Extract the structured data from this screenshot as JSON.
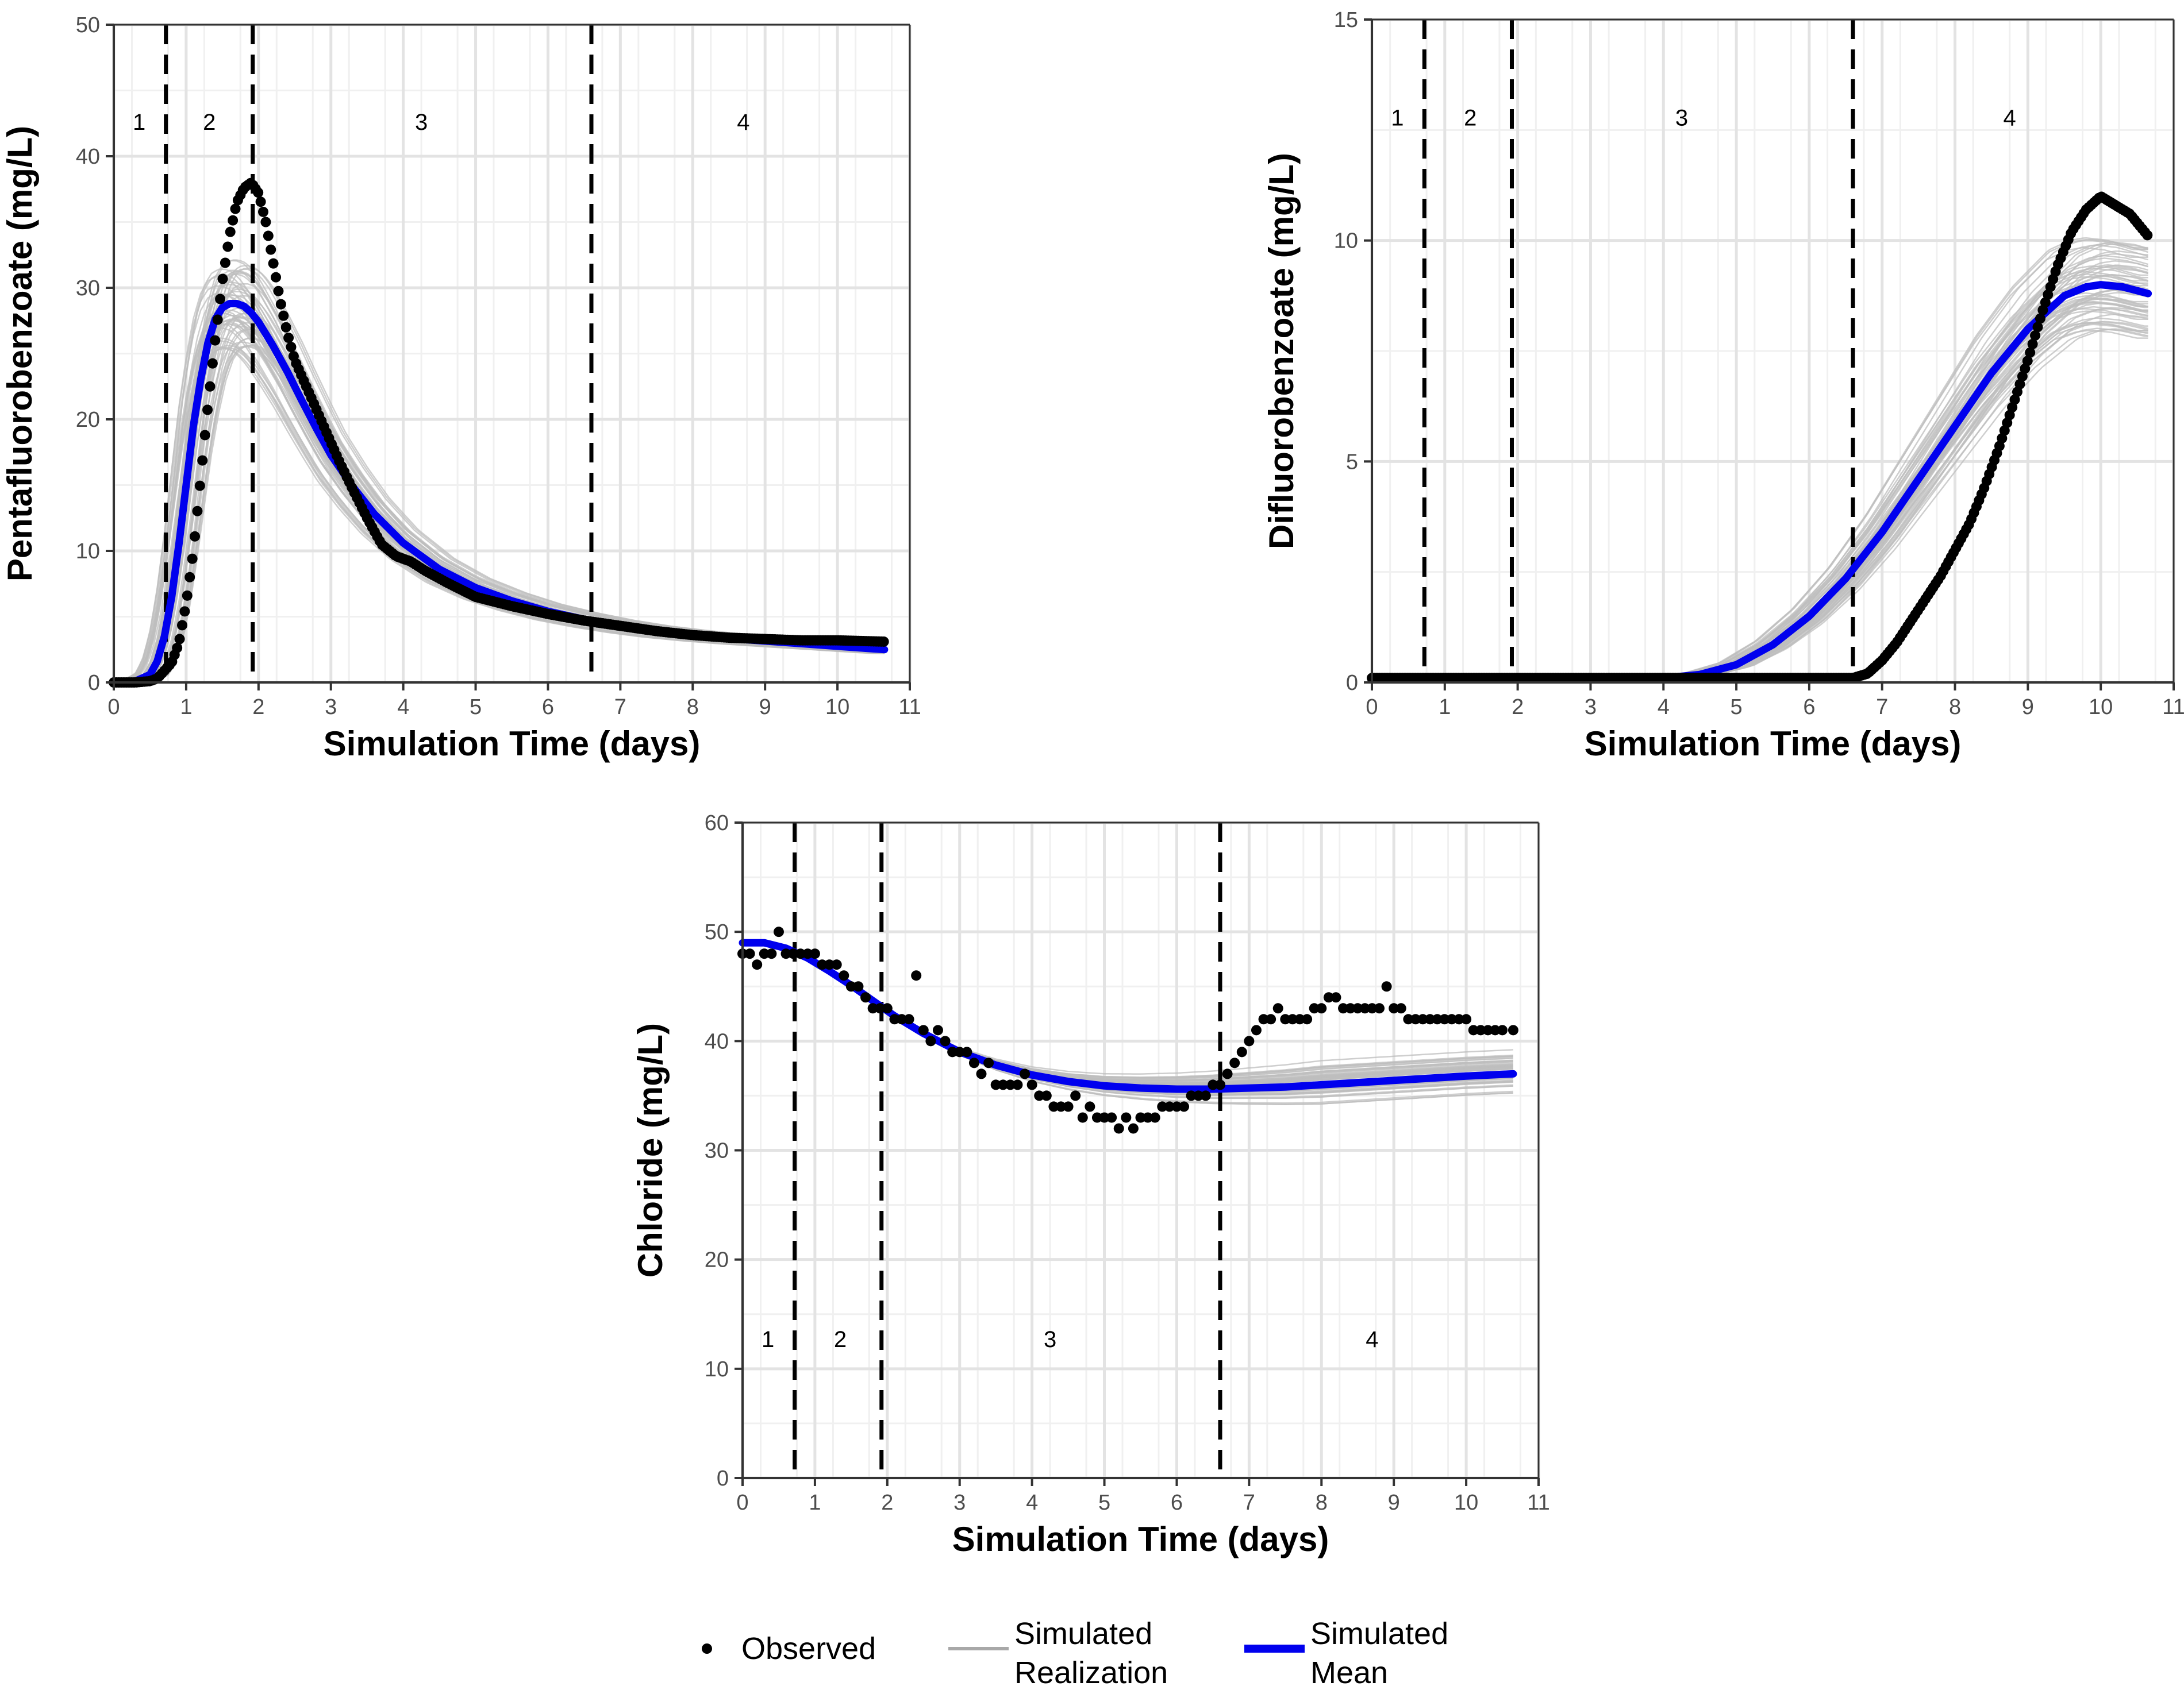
{
  "colors": {
    "observed": "#000000",
    "realization": "#bdbdbd",
    "mean": "#0000ee",
    "grid_major": "#e3e3e3",
    "grid_minor": "#f0f0f0",
    "phase_line": "#000000"
  },
  "legend": {
    "observed": "Observed",
    "realization_line1": "Simulated",
    "realization_line2": "Realization",
    "mean_line1": "Simulated",
    "mean_line2": "Mean"
  },
  "chart_data": [
    {
      "id": "pfba",
      "type": "line",
      "title": "",
      "xlabel": "Simulation Time (days)",
      "ylabel": "Pentafluorobenzoate (mg/L)",
      "xlim": [
        0,
        11
      ],
      "ylim": [
        0,
        50
      ],
      "xticks": [
        0,
        1,
        2,
        3,
        4,
        5,
        6,
        7,
        8,
        9,
        10,
        11
      ],
      "yticks": [
        0,
        10,
        20,
        30,
        40,
        50
      ],
      "phase_boundaries": [
        0.72,
        1.92,
        6.6
      ],
      "phases": [
        {
          "label": "1",
          "x": 0.35
        },
        {
          "label": "2",
          "x": 1.32
        },
        {
          "label": "3",
          "x": 4.25
        },
        {
          "label": "4",
          "x": 8.7
        }
      ],
      "phase_label_y": 42,
      "mean": {
        "x": [
          0,
          0.3,
          0.5,
          0.6,
          0.7,
          0.8,
          0.9,
          1.0,
          1.1,
          1.2,
          1.3,
          1.4,
          1.5,
          1.6,
          1.7,
          1.8,
          1.9,
          2.0,
          2.2,
          2.4,
          2.6,
          2.8,
          3.0,
          3.3,
          3.6,
          4.0,
          4.5,
          5.0,
          5.5,
          6.0,
          6.5,
          7.0,
          7.5,
          8.0,
          8.5,
          9.0,
          9.5,
          10.0,
          10.65
        ],
        "y": [
          0,
          0.1,
          0.6,
          1.6,
          3.5,
          6.5,
          10.5,
          15,
          19.5,
          23,
          25.8,
          27.6,
          28.5,
          28.8,
          28.8,
          28.6,
          28.1,
          27.4,
          25.6,
          23.6,
          21.4,
          19.3,
          17.3,
          14.9,
          12.8,
          10.6,
          8.6,
          7.2,
          6.2,
          5.4,
          4.8,
          4.3,
          3.9,
          3.6,
          3.35,
          3.15,
          2.95,
          2.75,
          2.5
        ]
      },
      "observed": {
        "x": [
          0,
          0.3,
          0.5,
          0.6,
          0.7,
          0.8,
          0.9,
          1.0,
          1.1,
          1.2,
          1.3,
          1.4,
          1.5,
          1.6,
          1.7,
          1.8,
          1.9,
          2.0,
          2.1,
          2.2,
          2.3,
          2.4,
          2.5,
          2.7,
          2.9,
          3.1,
          3.3,
          3.5,
          3.7,
          3.9,
          4.1,
          4.3,
          4.6,
          5.0,
          5.5,
          6.0,
          6.5,
          7.0,
          7.5,
          8.0,
          8.5,
          9.0,
          9.5,
          10.0,
          10.65
        ],
        "y": [
          0,
          0,
          0.1,
          0.3,
          0.9,
          1.5,
          3,
          6,
          10,
          15.5,
          21,
          26,
          30.5,
          34,
          36.5,
          37.6,
          38,
          37.2,
          35,
          32,
          29,
          26.5,
          24.5,
          22,
          19.5,
          17,
          14.7,
          12.5,
          10.5,
          9.6,
          9.2,
          8.5,
          7.6,
          6.5,
          5.8,
          5.2,
          4.7,
          4.3,
          3.9,
          3.6,
          3.4,
          3.3,
          3.2,
          3.2,
          3.1
        ]
      },
      "realizations": {
        "count": 60,
        "spread": "higher early peak, up to ~29-35 mg/L peak near day 1-2"
      }
    },
    {
      "id": "dfba",
      "type": "line",
      "title": "",
      "xlabel": "Simulation Time (days)",
      "ylabel": "Difluorobenzoate (mg/L)",
      "xlim": [
        0,
        11
      ],
      "ylim": [
        0,
        15
      ],
      "xticks": [
        0,
        1,
        2,
        3,
        4,
        5,
        6,
        7,
        8,
        9,
        10,
        11
      ],
      "yticks": [
        0,
        5,
        10,
        15
      ],
      "phase_boundaries": [
        0.72,
        1.92,
        6.6
      ],
      "phases": [
        {
          "label": "1",
          "x": 0.35
        },
        {
          "label": "2",
          "x": 1.35
        },
        {
          "label": "3",
          "x": 4.25
        },
        {
          "label": "4",
          "x": 8.75
        }
      ],
      "phase_label_y": 12.6,
      "mean": {
        "x": [
          0,
          4.0,
          4.5,
          5.0,
          5.5,
          6.0,
          6.5,
          7.0,
          7.5,
          8.0,
          8.5,
          9.0,
          9.5,
          9.8,
          10.0,
          10.3,
          10.65
        ],
        "y": [
          0.1,
          0.1,
          0.18,
          0.4,
          0.85,
          1.5,
          2.35,
          3.4,
          4.6,
          5.8,
          7.0,
          8.0,
          8.75,
          8.95,
          9.0,
          8.95,
          8.8
        ]
      },
      "observed": {
        "x": [
          0,
          6.0,
          6.6,
          6.8,
          7.0,
          7.2,
          7.4,
          7.6,
          7.8,
          8.0,
          8.2,
          8.4,
          8.6,
          8.8,
          9.0,
          9.2,
          9.4,
          9.6,
          9.8,
          10.0,
          10.2,
          10.4,
          10.65
        ],
        "y": [
          0.1,
          0.1,
          0.1,
          0.2,
          0.5,
          0.9,
          1.4,
          1.9,
          2.4,
          3.0,
          3.6,
          4.4,
          5.3,
          6.3,
          7.3,
          8.4,
          9.4,
          10.2,
          10.7,
          11.0,
          10.8,
          10.6,
          10.1
        ]
      },
      "realizations": {
        "count": 60,
        "spread": "peak band roughly 8.2 to 10 mg/L"
      }
    },
    {
      "id": "chloride",
      "type": "line",
      "title": "",
      "xlabel": "Simulation Time (days)",
      "ylabel": "Chloride (mg/L)",
      "xlim": [
        0,
        11
      ],
      "ylim": [
        0,
        60
      ],
      "xticks": [
        0,
        1,
        2,
        3,
        4,
        5,
        6,
        7,
        8,
        9,
        10,
        11
      ],
      "yticks": [
        0,
        10,
        20,
        30,
        40,
        50,
        60
      ],
      "phase_boundaries": [
        0.72,
        1.92,
        6.6
      ],
      "phases": [
        {
          "label": "1",
          "x": 0.35
        },
        {
          "label": "2",
          "x": 1.35
        },
        {
          "label": "3",
          "x": 4.25
        },
        {
          "label": "4",
          "x": 8.7
        }
      ],
      "phase_label_y": 12,
      "mean": {
        "x": [
          0,
          0.3,
          0.6,
          0.9,
          1.2,
          1.5,
          1.8,
          2.1,
          2.5,
          3.0,
          3.5,
          4.0,
          4.5,
          5.0,
          5.5,
          6.0,
          6.5,
          7.0,
          7.5,
          8.0,
          8.5,
          9.0,
          9.5,
          10.0,
          10.65
        ],
        "y": [
          49,
          49,
          48.5,
          47.6,
          46.4,
          45.1,
          43.7,
          42.3,
          40.7,
          39.0,
          37.8,
          36.9,
          36.3,
          35.9,
          35.7,
          35.6,
          35.6,
          35.7,
          35.8,
          36.0,
          36.2,
          36.4,
          36.6,
          36.8,
          37.0
        ]
      },
      "observed": {
        "x": [
          0,
          0.1,
          0.2,
          0.3,
          0.4,
          0.5,
          0.6,
          0.7,
          0.8,
          0.9,
          1.0,
          1.1,
          1.2,
          1.3,
          1.4,
          1.5,
          1.6,
          1.7,
          1.8,
          1.9,
          2.0,
          2.1,
          2.2,
          2.3,
          2.4,
          2.5,
          2.6,
          2.7,
          2.8,
          2.9,
          3.0,
          3.1,
          3.2,
          3.3,
          3.4,
          3.5,
          3.6,
          3.7,
          3.8,
          3.9,
          4.0,
          4.1,
          4.2,
          4.3,
          4.4,
          4.5,
          4.6,
          4.7,
          4.8,
          4.9,
          5.0,
          5.1,
          5.2,
          5.3,
          5.4,
          5.5,
          5.6,
          5.7,
          5.8,
          5.9,
          6.0,
          6.1,
          6.2,
          6.3,
          6.4,
          6.5,
          6.6,
          6.7,
          6.8,
          6.9,
          7.0,
          7.1,
          7.2,
          7.3,
          7.4,
          7.5,
          7.6,
          7.7,
          7.8,
          7.9,
          8.0,
          8.1,
          8.2,
          8.3,
          8.4,
          8.5,
          8.6,
          8.7,
          8.8,
          8.9,
          9.0,
          9.1,
          9.2,
          9.3,
          9.4,
          9.5,
          9.6,
          9.7,
          9.8,
          9.9,
          10.0,
          10.1,
          10.2,
          10.3,
          10.4,
          10.5,
          10.65
        ],
        "y": [
          48,
          48,
          47,
          48,
          48,
          50,
          48,
          48,
          48,
          48,
          48,
          47,
          47,
          47,
          46,
          45,
          45,
          44,
          43,
          43,
          43,
          42,
          42,
          42,
          46,
          41,
          40,
          41,
          40,
          39,
          39,
          39,
          38,
          37,
          38,
          36,
          36,
          36,
          36,
          37,
          36,
          35,
          35,
          34,
          34,
          34,
          35,
          33,
          34,
          33,
          33,
          33,
          32,
          33,
          32,
          33,
          33,
          33,
          34,
          34,
          34,
          34,
          35,
          35,
          35,
          36,
          36,
          37,
          38,
          39,
          40,
          41,
          42,
          42,
          43,
          42,
          42,
          42,
          42,
          43,
          43,
          44,
          44,
          43,
          43,
          43,
          43,
          43,
          43,
          45,
          43,
          43,
          42,
          42,
          42,
          42,
          42,
          42,
          42,
          42,
          42,
          41,
          41,
          41,
          41,
          41,
          41
        ]
      },
      "realizations": {
        "count": 60,
        "spread": "late-time band roughly 34 to 39 mg/L"
      }
    }
  ]
}
